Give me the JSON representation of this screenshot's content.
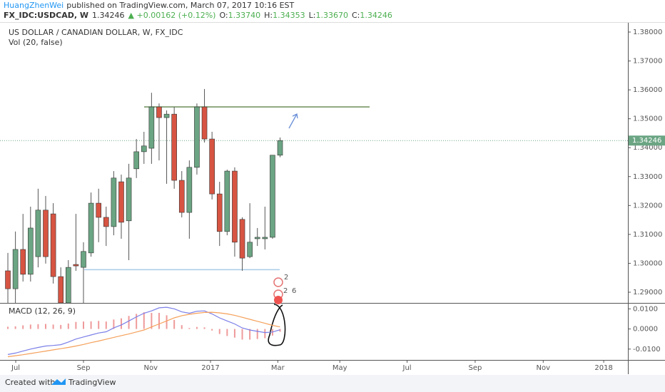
{
  "header": {
    "author": "HuangZhenWei",
    "published": "published on TradingView.com, March 07, 2017 10:16 EST",
    "symbol": "FX_IDC:USDCAD, W",
    "last": "1.34246",
    "change": "▲ +0.00162 (+0.12%)",
    "ohlc": [
      {
        "label": "O:",
        "value": "1.33740"
      },
      {
        "label": "H:",
        "value": "1.34353"
      },
      {
        "label": "L:",
        "value": "1.33670"
      },
      {
        "label": "C:",
        "value": "1.34246"
      }
    ]
  },
  "chart_data": {
    "type": "candlestick",
    "title": "US DOLLAR / CANADIAN DOLLAR, W, FX_IDC",
    "subtitle": "Vol (20, false)",
    "categories": [
      null,
      null,
      null,
      null,
      null,
      null,
      null,
      null,
      null,
      null,
      null,
      null,
      null,
      null,
      null,
      null,
      null,
      null,
      null,
      null,
      null,
      null,
      null,
      null,
      null,
      null,
      null,
      null,
      null,
      null,
      null,
      null,
      null,
      null,
      null,
      null,
      null
    ],
    "open": [
      1.2974,
      1.2912,
      1.3048,
      1.2962,
      1.3023,
      1.3184,
      1.3171,
      1.2954,
      1.2863,
      1.2996,
      1.2986,
      1.3036,
      1.3208,
      1.3159,
      1.3127,
      1.3282,
      1.3147,
      1.3327,
      1.3386,
      1.3398,
      1.3541,
      1.3504,
      1.3516,
      1.3287,
      1.3176,
      1.3332,
      1.3541,
      1.343,
      1.324,
      1.311,
      1.3319,
      1.3152,
      1.3023,
      1.3085,
      1.3085,
      1.309,
      1.3374
    ],
    "high": [
      1.3036,
      1.311,
      1.3171,
      1.3196,
      1.3258,
      1.3233,
      1.3208,
      1.2986,
      1.3011,
      1.3171,
      1.3073,
      1.3245,
      1.3258,
      1.3196,
      1.3319,
      1.3307,
      1.3344,
      1.343,
      1.3455,
      1.359,
      1.3553,
      1.3529,
      1.3541,
      1.3319,
      1.3356,
      1.3553,
      1.3603,
      1.3455,
      1.3282,
      1.3324,
      1.3332,
      1.3159,
      1.3208,
      1.3122,
      1.3196,
      1.3374,
      1.34353
    ],
    "low": [
      1.2863,
      1.2863,
      1.2937,
      1.2937,
      1.2986,
      1.2999,
      1.293,
      1.2826,
      1.2851,
      1.2974,
      1.2863,
      1.3023,
      1.3073,
      1.306,
      1.3097,
      1.3085,
      1.3011,
      1.3295,
      1.3344,
      1.3344,
      1.3356,
      1.3275,
      1.3258,
      1.3159,
      1.3085,
      1.3307,
      1.3418,
      1.3221,
      1.306,
      1.3097,
      1.3023,
      1.2974,
      1.3018,
      1.306,
      1.3048,
      1.3085,
      1.3367
    ],
    "close": [
      1.2912,
      1.3048,
      1.2962,
      1.3122,
      1.3184,
      1.3023,
      1.2954,
      1.2863,
      1.2986,
      1.2991,
      1.3041,
      1.3208,
      1.3159,
      1.3127,
      1.3295,
      1.3142,
      1.3295,
      1.3386,
      1.3406,
      1.3541,
      1.3504,
      1.3516,
      1.3287,
      1.3176,
      1.3332,
      1.3541,
      1.343,
      1.324,
      1.311,
      1.3319,
      1.3073,
      1.3018,
      1.3073,
      1.309,
      1.309,
      1.3374,
      1.34246
    ],
    "up_color": "#6ba583",
    "down_color": "#d75442",
    "xlim": [
      -1.04,
      82
    ],
    "xticks": [
      {
        "value": 1.04,
        "label": "Jul"
      },
      {
        "value": 10,
        "label": "Sep"
      },
      {
        "value": 18.9,
        "label": "Nov"
      },
      {
        "value": 26.8,
        "label": "2017"
      },
      {
        "value": 35.7,
        "label": "Mar"
      },
      {
        "value": 43.9,
        "label": "May"
      },
      {
        "value": 52.8,
        "label": "Jul"
      },
      {
        "value": 61.8,
        "label": "Sep"
      },
      {
        "value": 70.8,
        "label": "Nov"
      },
      {
        "value": 78.8,
        "label": "2018"
      }
    ],
    "ylim": [
      1.2863,
      1.3832
    ],
    "yticks": [
      {
        "value": 1.29,
        "label": "1.29000"
      },
      {
        "value": 1.3,
        "label": "1.30000"
      },
      {
        "value": 1.31,
        "label": "1.31000"
      },
      {
        "value": 1.32,
        "label": "1.32000"
      },
      {
        "value": 1.33,
        "label": "1.33000"
      },
      {
        "value": 1.34,
        "label": "1.34000"
      },
      {
        "value": 1.35,
        "label": "1.35000"
      },
      {
        "value": 1.36,
        "label": "1.36000"
      },
      {
        "value": 1.37,
        "label": "1.37000"
      },
      {
        "value": 1.38,
        "label": "1.38000"
      }
    ],
    "current_price": {
      "value": 1.34246,
      "label": "1.34246",
      "color": "#6ba583"
    },
    "lines": [
      {
        "value": 1.3541,
        "color": "#6b8e5a"
      },
      {
        "value": 1.2978,
        "color": "#a9cbe8"
      }
    ],
    "event_markers": [
      "2",
      "2",
      "6"
    ],
    "macd": {
      "title": "MACD (12, 26, 9)",
      "ylim": [
        -0.0154,
        0.0126
      ],
      "yticks": [
        {
          "value": 0.01,
          "label": "0.0100"
        },
        {
          "value": 0,
          "label": "0.0000"
        },
        {
          "value": -0.01,
          "label": "-0.0100"
        }
      ],
      "series": [
        {
          "name": "histogram",
          "color": "#ef9a9a",
          "values": [
            0.0011,
            0.0013,
            0.0018,
            0.0022,
            0.0024,
            0.0025,
            0.0022,
            0.002,
            0.0027,
            0.0035,
            0.0037,
            0.0038,
            0.004,
            0.0037,
            0.0047,
            0.0053,
            0.0065,
            0.0075,
            0.0083,
            0.008,
            0.008,
            0.0068,
            0.0045,
            0.0019,
            0.0005,
            0.001,
            0.0008,
            -0.0008,
            -0.0025,
            -0.0035,
            -0.0043,
            -0.0053,
            -0.0053,
            -0.005,
            -0.0046,
            -0.0033,
            -0.0014
          ]
        },
        {
          "name": "macd",
          "color": "#7b7fe8",
          "values": [
            -0.0127,
            -0.012,
            -0.011,
            -0.01,
            -0.0092,
            -0.0085,
            -0.0082,
            -0.0078,
            -0.0065,
            -0.005,
            -0.004,
            -0.003,
            -0.002,
            -0.0014,
            0.0005,
            0.002,
            0.004,
            0.006,
            0.0078,
            0.009,
            0.0105,
            0.0108,
            0.01,
            0.0085,
            0.0078,
            0.0088,
            0.009,
            0.0075,
            0.0055,
            0.004,
            0.0025,
            0.0005,
            -0.0005,
            -0.0012,
            -0.0018,
            -0.0015,
            -0.0004
          ]
        },
        {
          "name": "signal",
          "color": "#f5a05a",
          "values": [
            -0.0138,
            -0.0133,
            -0.0128,
            -0.0122,
            -0.0116,
            -0.011,
            -0.0104,
            -0.0098,
            -0.0092,
            -0.0085,
            -0.0077,
            -0.0068,
            -0.006,
            -0.0051,
            -0.0042,
            -0.0033,
            -0.0025,
            -0.0015,
            -0.0005,
            0.001,
            0.0025,
            0.004,
            0.0055,
            0.0066,
            0.0073,
            0.0078,
            0.0082,
            0.0083,
            0.008,
            0.0075,
            0.0068,
            0.0058,
            0.0048,
            0.0038,
            0.0028,
            0.0018,
            0.001
          ]
        }
      ]
    }
  },
  "footer": {
    "created": "Created with",
    "brand": "TradingView"
  }
}
